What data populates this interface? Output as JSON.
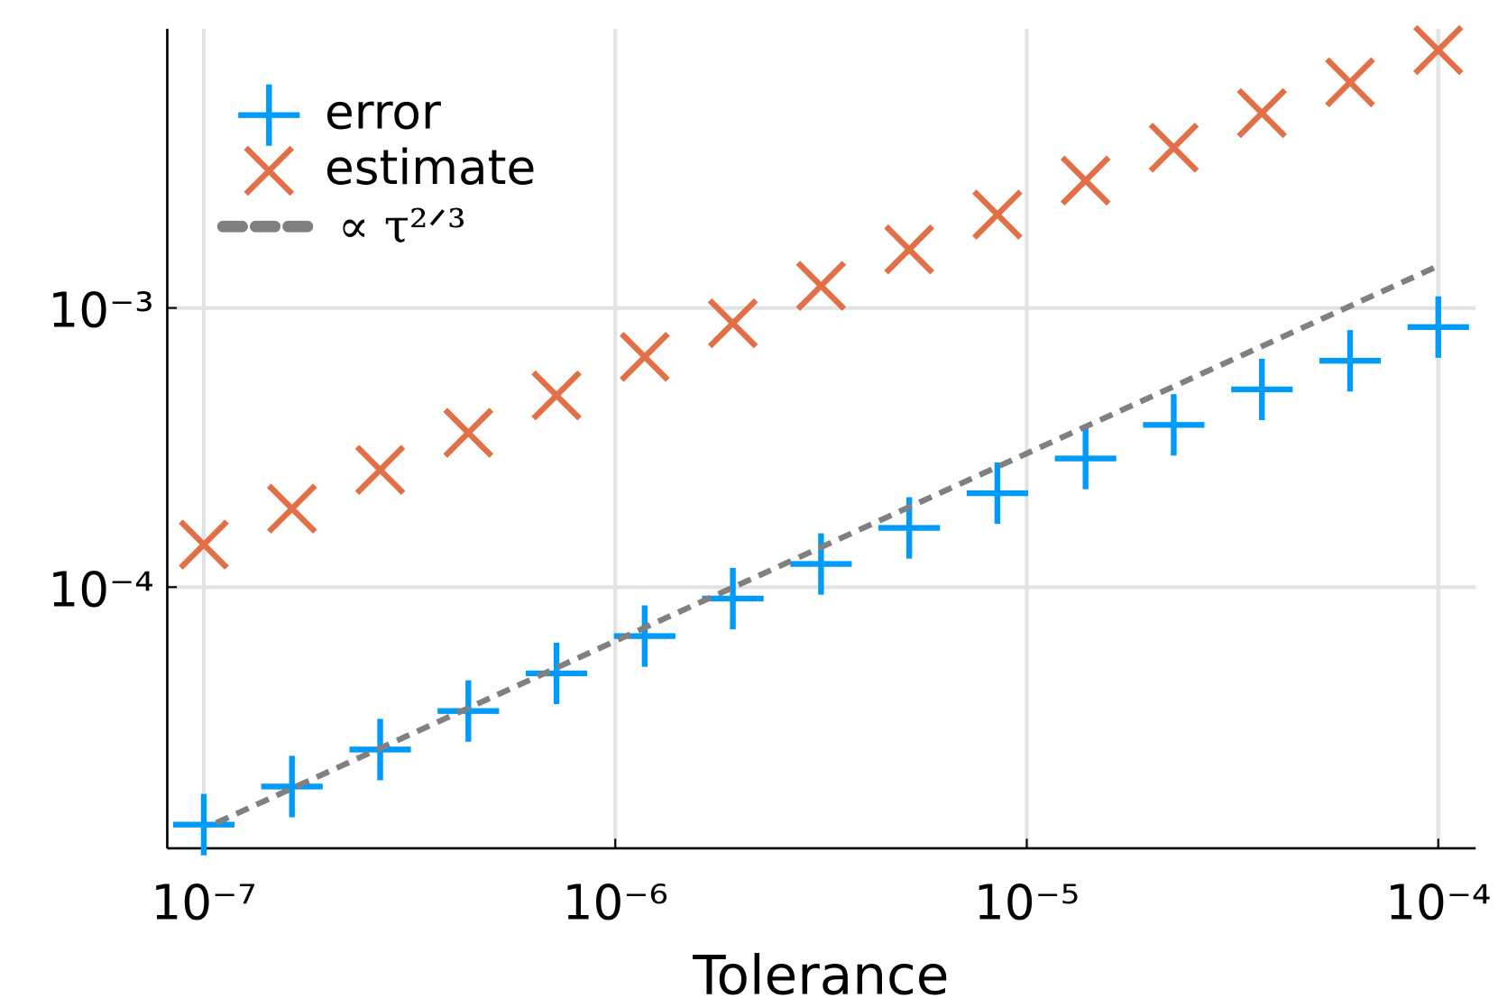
{
  "chart_data": {
    "type": "scatter",
    "xlabel": "Tolerance",
    "x": [
      1e-07,
      1.6379e-07,
      2.6827e-07,
      4.394e-07,
      7.1969e-07,
      1.1788e-06,
      1.9307e-06,
      3.1623e-06,
      5.1795e-06,
      8.4834e-06,
      1.3895e-05,
      2.2758e-05,
      3.7276e-05,
      6.1054e-05,
      0.0001
    ],
    "series": [
      {
        "name": "error",
        "color": "#009af9",
        "marker": "plus",
        "values": [
          1.41e-05,
          1.93e-05,
          2.62e-05,
          3.6e-05,
          4.91e-05,
          6.68e-05,
          9.1e-05,
          0.000121,
          0.000163,
          0.000217,
          0.000289,
          0.000381,
          0.000511,
          0.000647,
          0.000854
        ]
      },
      {
        "name": "estimate",
        "color": "#e26f46",
        "marker": "cross",
        "values": [
          0.000142,
          0.000191,
          0.000263,
          0.000357,
          0.000486,
          0.000668,
          0.000881,
          0.0012,
          0.00162,
          0.00216,
          0.00286,
          0.00375,
          0.00499,
          0.00643,
          0.00839
        ]
      },
      {
        "name": "∝ τ²ᐟ³",
        "color": "#808080",
        "marker": "dashed-line",
        "x": [
          1.072e-07,
          0.0001
        ],
        "values": [
          1.43e-05,
          0.001415
        ]
      }
    ],
    "xscale": "log",
    "yscale": "log",
    "xlim": [
      8.15e-08,
      0.0001233
    ],
    "ylim": [
      1.16e-05,
      0.01
    ],
    "xticks": [
      {
        "value": 1e-07,
        "label": "10⁻⁷"
      },
      {
        "value": 1e-06,
        "label": "10⁻⁶"
      },
      {
        "value": 1e-05,
        "label": "10⁻⁵"
      },
      {
        "value": 0.0001,
        "label": "10⁻⁴"
      }
    ],
    "yticks": [
      {
        "value": 0.0001,
        "label": "10⁻⁴"
      },
      {
        "value": 0.001,
        "label": "10⁻³"
      }
    ],
    "grid": true,
    "legend": "top-left"
  }
}
